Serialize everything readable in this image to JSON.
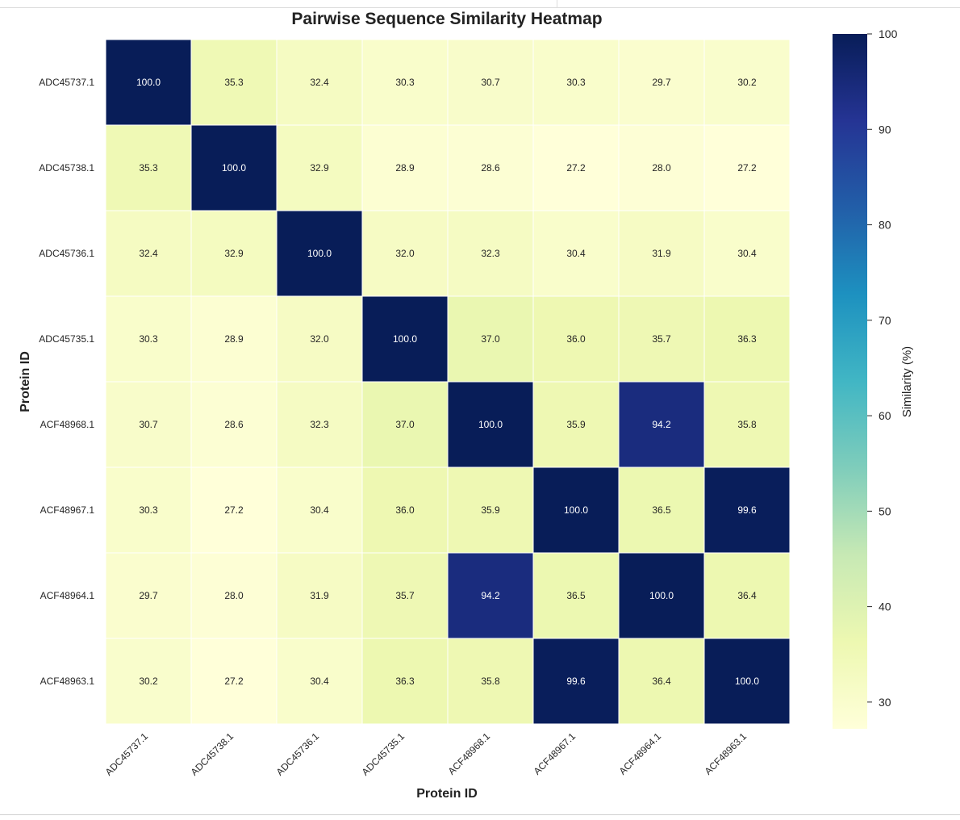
{
  "chart_data": {
    "type": "heatmap",
    "title": "Pairwise Sequence Similarity Heatmap",
    "xlabel": "Protein ID",
    "ylabel": "Protein ID",
    "colorbar_label": "Similarity (%)",
    "colorbar_range": [
      27.2,
      100
    ],
    "colorbar_ticks": [
      "30",
      "40",
      "50",
      "60",
      "70",
      "80",
      "90",
      "100"
    ],
    "colormap": "YlGnBu",
    "x_categories": [
      "ADC45737.1",
      "ADC45738.1",
      "ADC45736.1",
      "ADC45735.1",
      "ACF48968.1",
      "ACF48967.1",
      "ACF48964.1",
      "ACF48963.1"
    ],
    "y_categories": [
      "ADC45737.1",
      "ADC45738.1",
      "ADC45736.1",
      "ADC45735.1",
      "ACF48968.1",
      "ACF48967.1",
      "ACF48964.1",
      "ACF48963.1"
    ],
    "values": [
      [
        100.0,
        35.3,
        32.4,
        30.3,
        30.7,
        30.3,
        29.7,
        30.2
      ],
      [
        35.3,
        100.0,
        32.9,
        28.9,
        28.6,
        27.2,
        28.0,
        27.2
      ],
      [
        32.4,
        32.9,
        100.0,
        32.0,
        32.3,
        30.4,
        31.9,
        30.4
      ],
      [
        30.3,
        28.9,
        32.0,
        100.0,
        37.0,
        36.0,
        35.7,
        36.3
      ],
      [
        30.7,
        28.6,
        32.3,
        37.0,
        100.0,
        35.9,
        94.2,
        35.8
      ],
      [
        30.3,
        27.2,
        30.4,
        36.0,
        35.9,
        100.0,
        36.5,
        99.6
      ],
      [
        29.7,
        28.0,
        31.9,
        35.7,
        94.2,
        36.5,
        100.0,
        36.4
      ],
      [
        30.2,
        27.2,
        30.4,
        36.3,
        35.8,
        99.6,
        36.4,
        100.0
      ]
    ],
    "value_format": "1 decimal",
    "grid": false
  }
}
